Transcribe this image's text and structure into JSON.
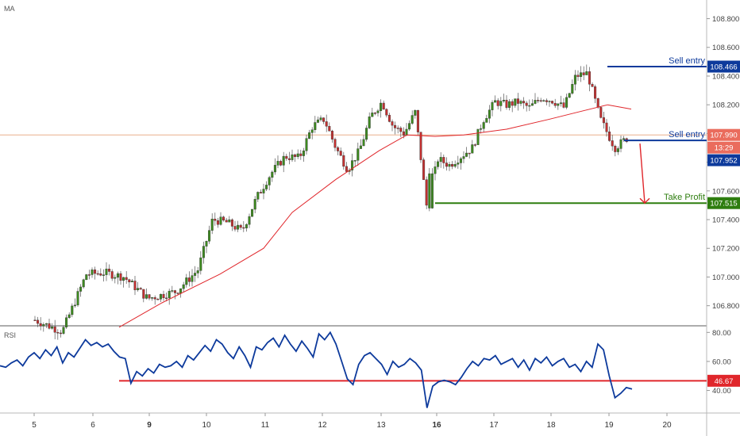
{
  "chart_data": [
    {
      "type": "candlestick",
      "title": "",
      "indicator_label": "MA",
      "price_axis": {
        "ticks": [
          "108.800",
          "108.600",
          "108.400",
          "108.200",
          "108.000",
          "107.800",
          "107.600",
          "107.400",
          "107.200",
          "107.000",
          "106.800"
        ],
        "range": [
          106.66,
          108.93
        ]
      },
      "time_axis": {
        "labels": [
          "5",
          "6",
          "9",
          "10",
          "11",
          "12",
          "13",
          "16",
          "17",
          "18",
          "19",
          "20"
        ],
        "bold_labels": [
          "9",
          "16"
        ]
      },
      "current_price": "107.990",
      "countdown": "13:29",
      "annotations": [
        {
          "label": "Sell entry",
          "price": 108.466,
          "price_label": "108.466",
          "color": "#0d3a9c"
        },
        {
          "label": "Sell entry",
          "price": 107.952,
          "price_label": "107.952",
          "color": "#0d3a9c"
        },
        {
          "label": "Take Profit",
          "price": 107.515,
          "price_label": "107.515",
          "color": "#2e7d0f"
        }
      ],
      "anchors": [
        [
          "5",
          106.7
        ],
        [
          "5",
          106.62
        ],
        [
          "6",
          107.02
        ],
        [
          "6",
          107.03
        ],
        [
          "6",
          107.0
        ],
        [
          "9",
          106.85
        ],
        [
          "9",
          106.9
        ],
        [
          "10",
          107.05
        ],
        [
          "10",
          107.4
        ],
        [
          "10",
          107.38
        ],
        [
          "10",
          107.32
        ],
        [
          "11",
          107.55
        ],
        [
          "11",
          107.72
        ],
        [
          "11",
          107.84
        ],
        [
          "11",
          107.83
        ],
        [
          "12",
          108.05
        ],
        [
          "12",
          108.1
        ],
        [
          "12",
          107.9
        ],
        [
          "12",
          107.75
        ],
        [
          "12",
          107.88
        ],
        [
          "13",
          108.12
        ],
        [
          "13",
          108.22
        ],
        [
          "13",
          108.05
        ],
        [
          "13",
          108.0
        ],
        [
          "13",
          108.15
        ],
        [
          "16",
          107.5
        ],
        [
          "16",
          107.82
        ],
        [
          "16",
          107.78
        ],
        [
          "16",
          107.84
        ],
        [
          "16",
          107.9
        ],
        [
          "17",
          108.1
        ],
        [
          "17",
          108.22
        ],
        [
          "17",
          108.2
        ],
        [
          "17",
          108.22
        ],
        [
          "17",
          108.18
        ],
        [
          "18",
          108.25
        ],
        [
          "18",
          108.23
        ],
        [
          "18",
          108.18
        ],
        [
          "18",
          108.4
        ],
        [
          "18",
          108.42
        ],
        [
          "19",
          108.1
        ],
        [
          "19",
          107.9
        ],
        [
          "19",
          107.98
        ],
        [
          "19",
          107.99
        ]
      ],
      "moving_average": [
        [
          "6",
          106.65
        ],
        [
          "9",
          106.82
        ],
        [
          "10",
          107.02
        ],
        [
          "11",
          107.2
        ],
        [
          "11",
          107.45
        ],
        [
          "12",
          107.68
        ],
        [
          "13",
          107.88
        ],
        [
          "13",
          107.99
        ],
        [
          "16",
          107.98
        ],
        [
          "16",
          107.99
        ],
        [
          "17",
          108.03
        ],
        [
          "18",
          108.1
        ],
        [
          "18",
          108.15
        ],
        [
          "19",
          108.2
        ],
        [
          "19",
          108.17
        ]
      ],
      "projection": {
        "from_price": 107.952,
        "to_price": 107.515
      }
    },
    {
      "type": "line",
      "indicator_label": "RSI",
      "y_ticks": [
        "80.00",
        "60.00",
        "40.00"
      ],
      "range": [
        25,
        84
      ],
      "level": {
        "value": 46.67,
        "label": "46.67",
        "color": "#e0262b"
      },
      "series": [
        57,
        56,
        59,
        61,
        57,
        63,
        66,
        62,
        68,
        64,
        70,
        59,
        66,
        63,
        69,
        75,
        71,
        73,
        70,
        72,
        67,
        63,
        62,
        45,
        53,
        50,
        55,
        52,
        58,
        56,
        57,
        60,
        56,
        64,
        61,
        66,
        71,
        67,
        75,
        72,
        66,
        62,
        70,
        64,
        56,
        70,
        68,
        73,
        76,
        70,
        78,
        72,
        67,
        74,
        69,
        63,
        79,
        75,
        80,
        72,
        60,
        48,
        44,
        58,
        64,
        66,
        62,
        58,
        51,
        60,
        56,
        58,
        62,
        59,
        54,
        28,
        43,
        46,
        47,
        46,
        44,
        49,
        55,
        60,
        57,
        62,
        61,
        64,
        58,
        60,
        62,
        56,
        61,
        54,
        62,
        59,
        63,
        57,
        60,
        62,
        56,
        58,
        53,
        60,
        56,
        72,
        68,
        50,
        35,
        38,
        42,
        41
      ]
    }
  ]
}
